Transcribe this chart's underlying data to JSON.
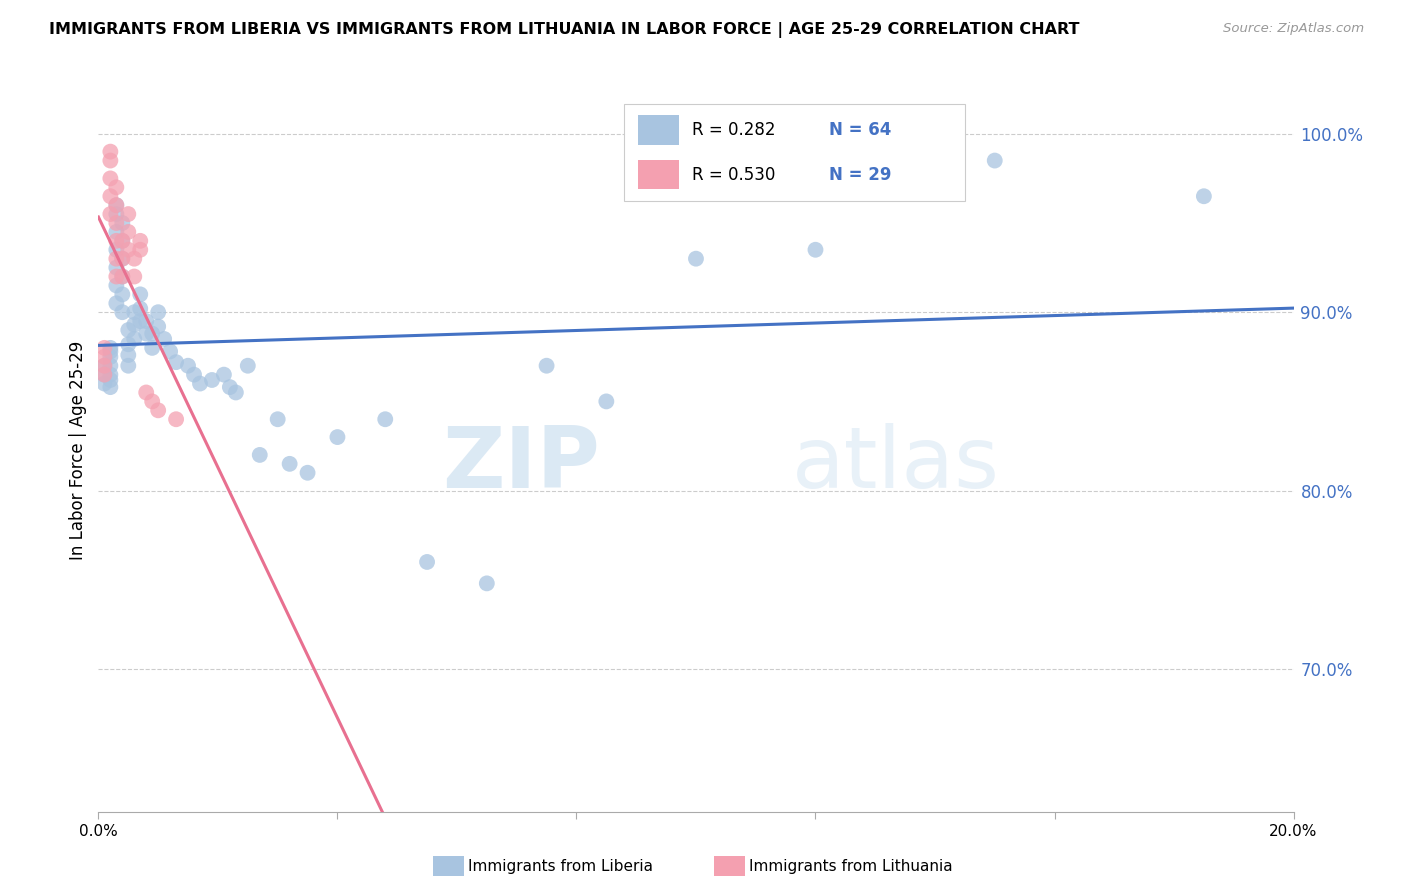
{
  "title": "IMMIGRANTS FROM LIBERIA VS IMMIGRANTS FROM LITHUANIA IN LABOR FORCE | AGE 25-29 CORRELATION CHART",
  "source": "Source: ZipAtlas.com",
  "ylabel": "In Labor Force | Age 25-29",
  "r_liberia": 0.282,
  "n_liberia": 64,
  "r_lithuania": 0.53,
  "n_lithuania": 29,
  "color_liberia": "#a8c4e0",
  "color_lithuania": "#f4a0b0",
  "line_color_liberia": "#4472c4",
  "line_color_lithuania": "#e87090",
  "watermark_zip": "ZIP",
  "watermark_atlas": "atlas",
  "ytick_labels": [
    "100.0%",
    "90.0%",
    "80.0%",
    "70.0%"
  ],
  "ytick_values": [
    1.0,
    0.9,
    0.8,
    0.7
  ],
  "xlim": [
    0.0,
    0.2
  ],
  "ylim": [
    0.62,
    1.025
  ],
  "liberia_x": [
    0.001,
    0.001,
    0.001,
    0.002,
    0.002,
    0.002,
    0.002,
    0.002,
    0.002,
    0.002,
    0.003,
    0.003,
    0.003,
    0.003,
    0.003,
    0.003,
    0.003,
    0.004,
    0.004,
    0.004,
    0.004,
    0.004,
    0.004,
    0.005,
    0.005,
    0.005,
    0.005,
    0.006,
    0.006,
    0.006,
    0.007,
    0.007,
    0.007,
    0.008,
    0.008,
    0.009,
    0.009,
    0.01,
    0.01,
    0.011,
    0.012,
    0.013,
    0.015,
    0.016,
    0.017,
    0.019,
    0.021,
    0.022,
    0.023,
    0.025,
    0.027,
    0.03,
    0.032,
    0.035,
    0.04,
    0.048,
    0.055,
    0.065,
    0.075,
    0.085,
    0.1,
    0.12,
    0.15,
    0.185
  ],
  "liberia_y": [
    0.87,
    0.865,
    0.86,
    0.88,
    0.878,
    0.875,
    0.87,
    0.865,
    0.862,
    0.858,
    0.96,
    0.955,
    0.945,
    0.935,
    0.925,
    0.915,
    0.905,
    0.95,
    0.94,
    0.93,
    0.92,
    0.91,
    0.9,
    0.89,
    0.882,
    0.876,
    0.87,
    0.9,
    0.893,
    0.885,
    0.91,
    0.902,
    0.895,
    0.895,
    0.888,
    0.888,
    0.88,
    0.9,
    0.892,
    0.885,
    0.878,
    0.872,
    0.87,
    0.865,
    0.86,
    0.862,
    0.865,
    0.858,
    0.855,
    0.87,
    0.82,
    0.84,
    0.815,
    0.81,
    0.83,
    0.84,
    0.76,
    0.748,
    0.87,
    0.85,
    0.93,
    0.935,
    0.985,
    0.965
  ],
  "lithuania_x": [
    0.001,
    0.001,
    0.001,
    0.001,
    0.002,
    0.002,
    0.002,
    0.002,
    0.002,
    0.003,
    0.003,
    0.003,
    0.003,
    0.003,
    0.003,
    0.004,
    0.004,
    0.004,
    0.005,
    0.005,
    0.005,
    0.006,
    0.006,
    0.007,
    0.007,
    0.008,
    0.009,
    0.01,
    0.013
  ],
  "lithuania_y": [
    0.88,
    0.875,
    0.87,
    0.865,
    0.99,
    0.985,
    0.975,
    0.965,
    0.955,
    0.97,
    0.96,
    0.95,
    0.94,
    0.93,
    0.92,
    0.94,
    0.93,
    0.92,
    0.955,
    0.945,
    0.935,
    0.93,
    0.92,
    0.94,
    0.935,
    0.855,
    0.85,
    0.845,
    0.84
  ]
}
